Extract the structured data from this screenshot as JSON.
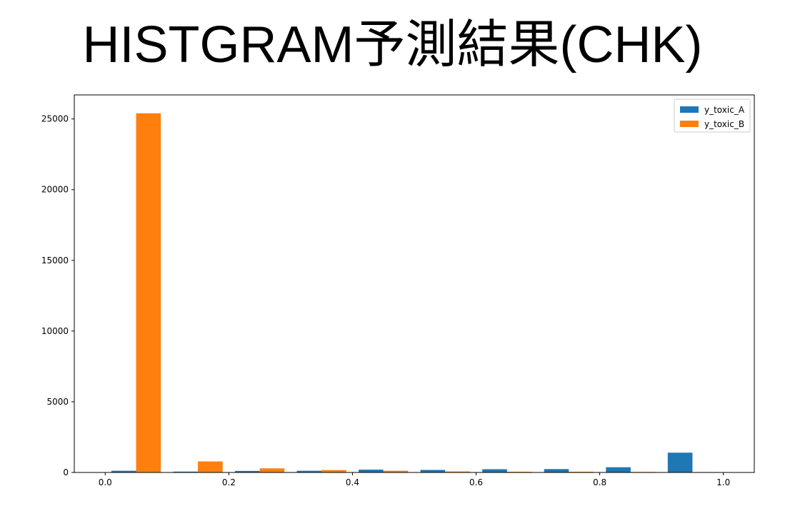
{
  "slide": {
    "title": "HISTGRAM予測結果(CHK)"
  },
  "chart_data": {
    "type": "bar",
    "title": "",
    "xlabel": "",
    "ylabel": "",
    "bin_edges": [
      0.0,
      0.1,
      0.2,
      0.3,
      0.4,
      0.5,
      0.6,
      0.7,
      0.8,
      0.9,
      1.0
    ],
    "xlim": [
      -0.05,
      1.05
    ],
    "ylim": [
      0,
      26700
    ],
    "xticks": [
      0.0,
      0.2,
      0.4,
      0.6,
      0.8,
      1.0
    ],
    "xtick_labels": [
      "0.0",
      "0.2",
      "0.4",
      "0.6",
      "0.8",
      "1.0"
    ],
    "yticks": [
      0,
      5000,
      10000,
      15000,
      20000,
      25000
    ],
    "ytick_labels": [
      "0",
      "5000",
      "10000",
      "15000",
      "20000",
      "25000"
    ],
    "grid": false,
    "legend_position": "top-right",
    "series": [
      {
        "name": "y_toxic_A",
        "color": "#1f77b4",
        "values": [
          120,
          60,
          110,
          120,
          200,
          180,
          230,
          240,
          370,
          1400
        ]
      },
      {
        "name": "y_toxic_B",
        "color": "#ff7f0e",
        "values": [
          25400,
          780,
          290,
          170,
          120,
          70,
          50,
          50,
          40,
          30
        ]
      }
    ]
  }
}
